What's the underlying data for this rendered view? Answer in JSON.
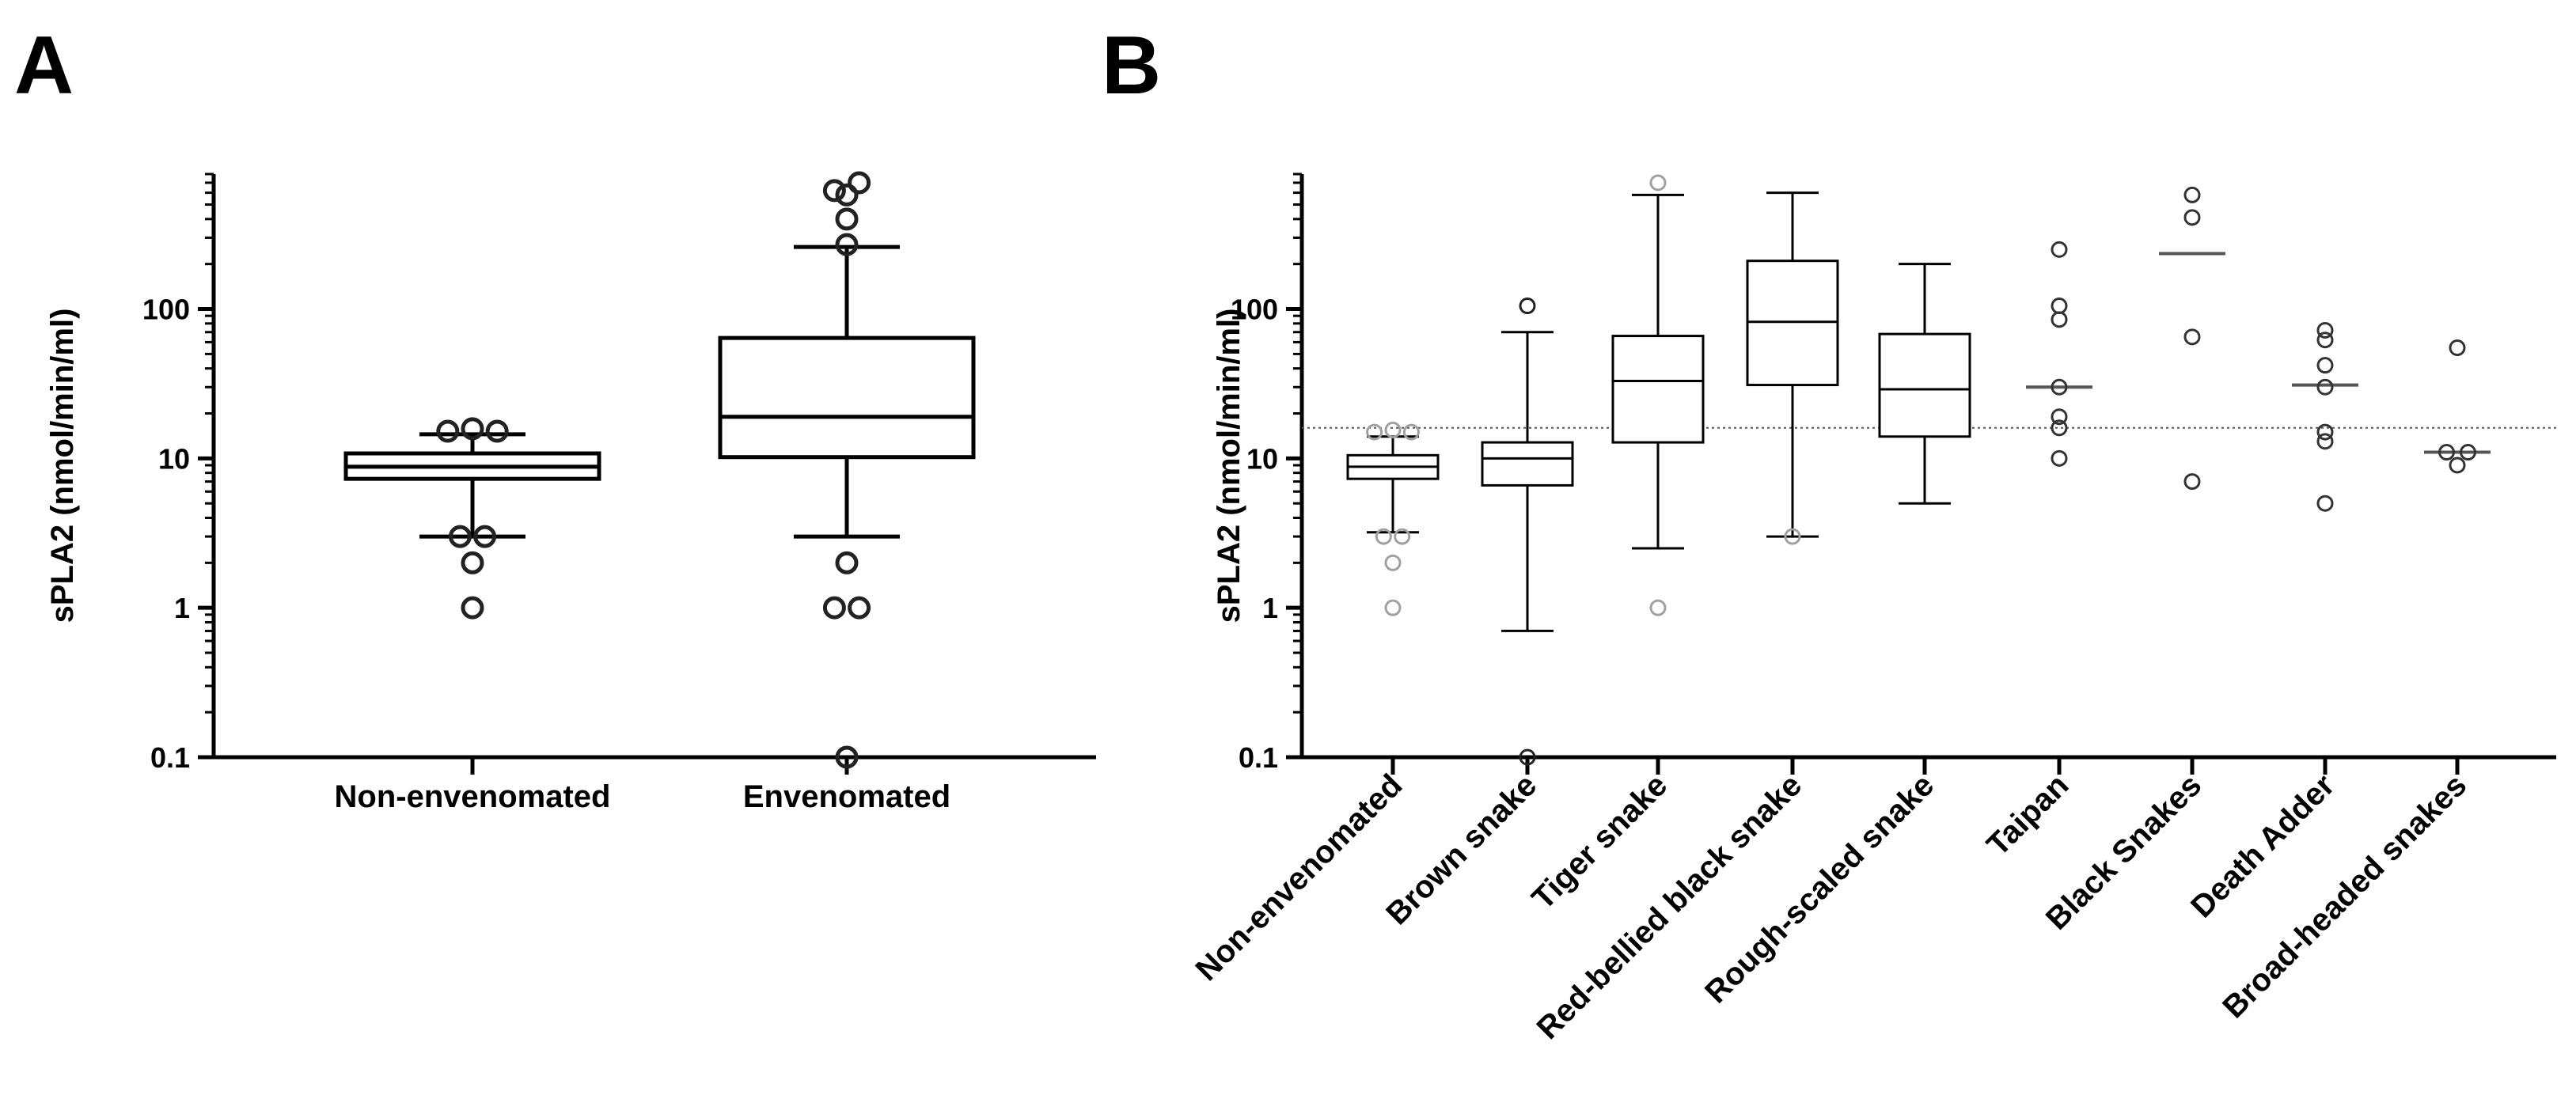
{
  "chart_data": [
    {
      "panel": "A",
      "type": "box",
      "ylabel": "sPLA2 (nmol/min/ml)",
      "yscale": "log",
      "ylim": [
        0.1,
        800
      ],
      "yticks": [
        {
          "value": 0.1,
          "label": "0.1"
        },
        {
          "value": 1,
          "label": "1"
        },
        {
          "value": 10,
          "label": "10"
        },
        {
          "value": 100,
          "label": "100"
        }
      ],
      "categories": [
        "Non-envenomated",
        "Envenomated"
      ],
      "series": [
        {
          "name": "Non-envenomated",
          "q1": 7.3,
          "median": 8.8,
          "q3": 10.8,
          "whisker_low": 3.0,
          "whisker_high": 14.5,
          "outliers": [
            15.2,
            15.8,
            15.2,
            3.0,
            3.0,
            2.0,
            1.0
          ]
        },
        {
          "name": "Envenomated",
          "q1": 10.2,
          "median": 19.0,
          "q3": 64.0,
          "whisker_low": 3.0,
          "whisker_high": 260.0,
          "outliers": [
            620.0,
            700.0,
            580.0,
            400.0,
            270.0,
            2.0,
            1.0,
            1.0,
            0.1
          ]
        }
      ]
    },
    {
      "panel": "B",
      "type": "box",
      "ylabel": "sPLA2 (nmol/min/ml)",
      "yscale": "log",
      "ylim": [
        0.1,
        800
      ],
      "reference_line": 16,
      "yticks": [
        {
          "value": 0.1,
          "label": "0.1"
        },
        {
          "value": 1,
          "label": "1"
        },
        {
          "value": 10,
          "label": "10"
        },
        {
          "value": 100,
          "label": "100"
        }
      ],
      "categories": [
        "Non-envenomated",
        "Brown snake",
        "Tiger snake",
        "Red-bellied black snake",
        "Rough-scaled snake",
        "Taipan",
        "Black Snakes",
        "Death Adder",
        "Broad-headed snakes"
      ],
      "series": [
        {
          "name": "Non-envenomated",
          "kind": "box",
          "q1": 7.3,
          "median": 8.8,
          "q3": 10.5,
          "whisker_low": 3.2,
          "whisker_high": 14.0,
          "outliers": [
            15.0,
            15.5,
            15.0,
            3.0,
            3.0,
            2.0,
            1.0
          ],
          "outlier_color": "#a0a0a0"
        },
        {
          "name": "Brown snake",
          "kind": "box",
          "q1": 6.6,
          "median": 10.0,
          "q3": 12.8,
          "whisker_low": 0.7,
          "whisker_high": 70.0,
          "outliers": [
            105.0,
            0.1
          ],
          "outlier_color": "#222222"
        },
        {
          "name": "Tiger snake",
          "kind": "box",
          "q1": 12.8,
          "median": 33.0,
          "q3": 66.0,
          "whisker_low": 2.5,
          "whisker_high": 580.0,
          "outliers": [
            700.0,
            1.0
          ],
          "outlier_color": "#a0a0a0"
        },
        {
          "name": "Red-bellied black snake",
          "kind": "box",
          "q1": 31.0,
          "median": 82.0,
          "q3": 210.0,
          "whisker_low": 3.0,
          "whisker_high": 600.0,
          "outliers": [
            3.0
          ],
          "outlier_color": "#a0a0a0"
        },
        {
          "name": "Rough-scaled snake",
          "kind": "box",
          "q1": 14.0,
          "median": 29.0,
          "q3": 68.0,
          "whisker_low": 5.0,
          "whisker_high": 200.0,
          "outliers": [],
          "outlier_color": "#222222"
        },
        {
          "name": "Taipan",
          "kind": "points",
          "median": 30.0,
          "points": [
            250.0,
            105.0,
            85.0,
            30.0,
            19.0,
            16.0,
            10.0
          ]
        },
        {
          "name": "Black Snakes",
          "kind": "points",
          "median": 235.0,
          "points": [
            580.0,
            410.0,
            65.0,
            7.0
          ]
        },
        {
          "name": "Death Adder",
          "kind": "points",
          "median": 31.0,
          "points": [
            72.0,
            62.0,
            42.0,
            30.0,
            15.0,
            13.0,
            5.0
          ]
        },
        {
          "name": "Broad-headed snakes",
          "kind": "points",
          "median": 11.0,
          "points": [
            55.0,
            11.0,
            11.0,
            9.0
          ]
        }
      ]
    }
  ],
  "panels": {
    "a_letter": "A",
    "b_letter": "B"
  }
}
